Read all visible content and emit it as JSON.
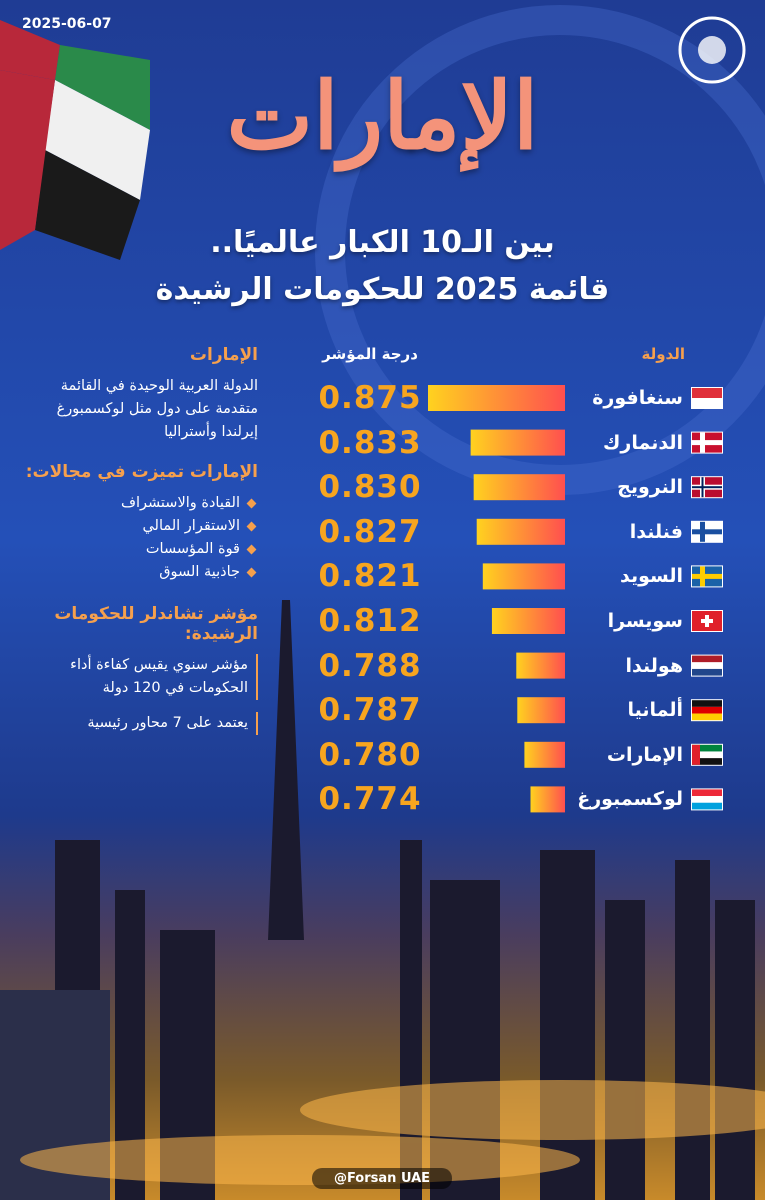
{
  "date": "2025-06-07",
  "chart_data": {
    "type": "bar",
    "orientation": "horizontal",
    "title": "الإمارات",
    "subtitle": [
      "بين الـ10 الكبار عالميًا..",
      "قائمة 2025 للحكومات الرشيدة"
    ],
    "category_header": "الدولة",
    "value_header": "درجة المؤشر",
    "categories": [
      "سنغافورة",
      "الدنمارك",
      "النرويج",
      "فنلندا",
      "السويد",
      "سويسرا",
      "هولندا",
      "ألمانيا",
      "الإمارات",
      "لوكسمبورغ"
    ],
    "values": [
      0.875,
      0.833,
      0.83,
      0.827,
      0.821,
      0.812,
      0.788,
      0.787,
      0.78,
      0.774
    ],
    "value_labels": [
      "0.875",
      "0.833",
      "0.830",
      "0.827",
      "0.821",
      "0.812",
      "0.788",
      "0.787",
      "0.780",
      "0.774"
    ],
    "xlim": [
      0.74,
      0.875
    ],
    "bar_colors": [
      "#ffd21f",
      "#ff4f4f"
    ],
    "value_color": "#f7a51f"
  },
  "sidebar": {
    "heading": "الإمارات",
    "text": "الدولة العربية الوحيدة في القائمة متقدمة على دول مثل لوكسمبورغ إيرلندا وأستراليا",
    "features_heading": "الإمارات تميزت في مجالات:",
    "features": [
      "القيادة والاستشراف",
      "الاستقرار المالي",
      "قوة المؤسسات",
      "جاذبية السوق"
    ],
    "index_heading": "مؤشر تشاندلر للحكومات الرشيدة:",
    "index_items": [
      "مؤشر سنوي يقيس كفاءة أداء الحكومات في 120 دولة",
      "يعتمد على 7 محاور رئيسية"
    ]
  },
  "footer": "@Forsan UAE"
}
